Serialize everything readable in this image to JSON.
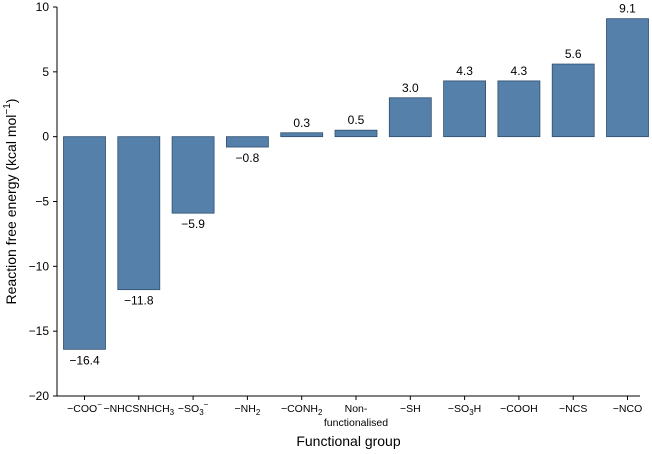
{
  "chart_data": {
    "type": "bar",
    "categories": [
      {
        "main": "−COO",
        "sup": "−"
      },
      {
        "main": "−NHCSNHCH",
        "sub": "3"
      },
      {
        "main": "−SO",
        "sub": "3",
        "sup": "−"
      },
      {
        "main": "−NH",
        "sub": "2"
      },
      {
        "main": "−CONH",
        "sub": "2"
      },
      {
        "lines": [
          "Non-",
          "functionalised"
        ]
      },
      {
        "main": "−SH"
      },
      {
        "main": "−SO",
        "sub": "3",
        "after": "H"
      },
      {
        "main": "−COOH"
      },
      {
        "main": "−NCS"
      },
      {
        "main": "−NCO"
      }
    ],
    "values": [
      -16.4,
      -11.8,
      -5.9,
      -0.8,
      0.3,
      0.5,
      3.0,
      4.3,
      4.3,
      5.6,
      9.1
    ],
    "value_labels": [
      "−16.4",
      "−11.8",
      "−5.9",
      "−0.8",
      "0.3",
      "0.5",
      "3.0",
      "4.3",
      "4.3",
      "5.6",
      "9.1"
    ],
    "xlabel": "Functional group",
    "ylabel": {
      "main": "Reaction free energy (kcal mol",
      "sup": "−1",
      "after": ")"
    },
    "ylim": [
      -20,
      10
    ],
    "yticks": [
      -20,
      -15,
      -10,
      -5,
      0,
      5,
      10
    ],
    "ytick_labels": [
      "−20",
      "−15",
      "−10",
      "−5",
      "0",
      "5",
      "10"
    ],
    "bar_color": "#5580aa",
    "grid": false
  }
}
